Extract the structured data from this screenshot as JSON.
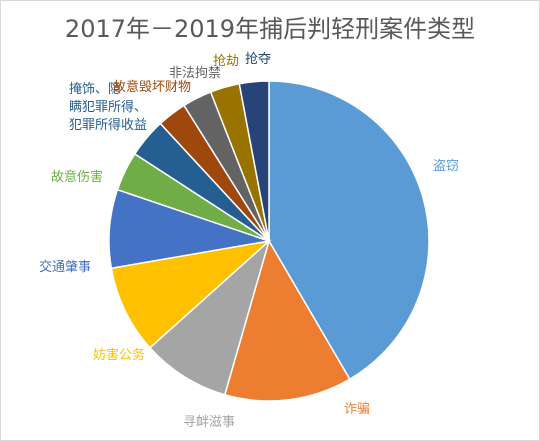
{
  "chart_data": {
    "type": "pie",
    "title": "2017年－2019年捕后判轻刑案件类型",
    "series": [
      {
        "label": "盗窃",
        "value": 42,
        "color": "#5B9BD5"
      },
      {
        "label": "诈骗",
        "value": 13,
        "color": "#ED7D31"
      },
      {
        "label": "寻衅滋事",
        "value": 9,
        "color": "#A5A5A5"
      },
      {
        "label": "妨害公务",
        "value": 9,
        "color": "#FFC000"
      },
      {
        "label": "交通肇事",
        "value": 8,
        "color": "#4472C4"
      },
      {
        "label": "故意伤害",
        "value": 4,
        "color": "#70AD47"
      },
      {
        "label": "掩饰、隐瞒犯罪所得、犯罪所得收益",
        "value": 4,
        "color": "#255E91"
      },
      {
        "label": "故意毁坏财物",
        "value": 3,
        "color": "#9E480E"
      },
      {
        "label": "非法拘禁",
        "value": 3,
        "color": "#636363"
      },
      {
        "label": "抢劫",
        "value": 3,
        "color": "#997300"
      },
      {
        "label": "抢夺",
        "value": 3,
        "color": "#264478"
      }
    ]
  }
}
